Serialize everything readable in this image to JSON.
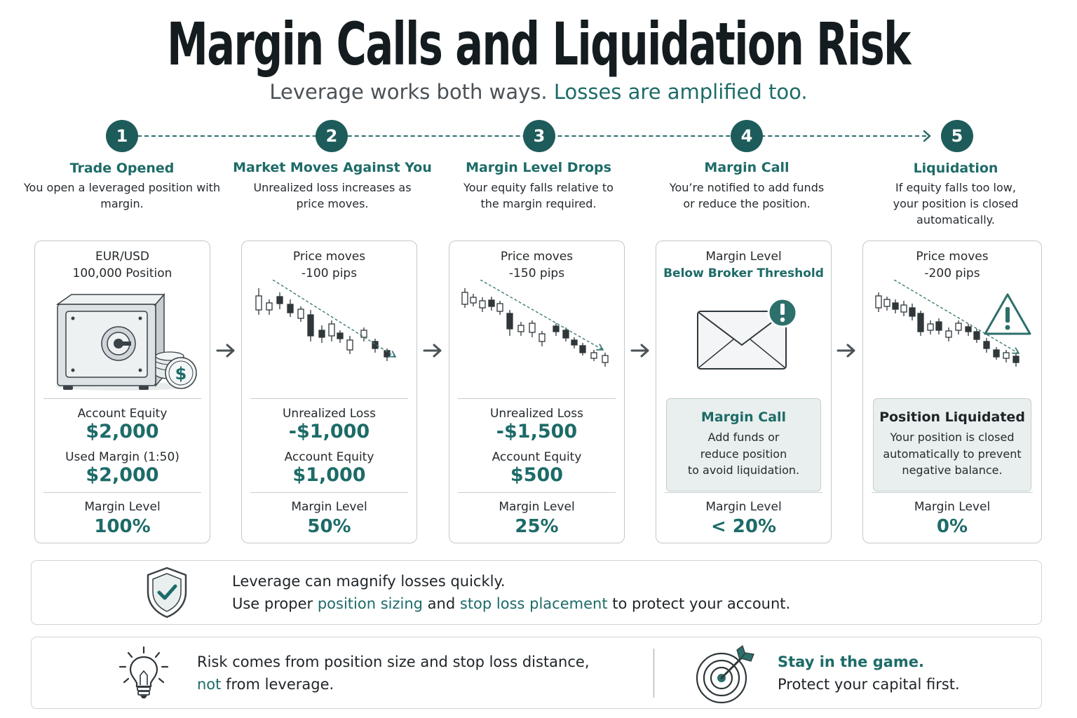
{
  "title": "Margin Calls and Liquidation Risk",
  "subtitle": {
    "part1": "Leverage works both ways.",
    "part2": "Losses are amplified too."
  },
  "colors": {
    "teal": "#1d6b68",
    "dark_teal": "#1d5c5a",
    "text": "#1a1f23",
    "border": "#c3c7ca"
  },
  "steps": [
    {
      "num": "1",
      "title": "Trade Opened",
      "desc": "You open a leveraged position with margin."
    },
    {
      "num": "2",
      "title": "Market Moves Against You",
      "desc": "Unrealized loss increases as price moves."
    },
    {
      "num": "3",
      "title": "Margin Level Drops",
      "desc": "Your equity falls relative to the margin required."
    },
    {
      "num": "4",
      "title": "Margin Call",
      "desc": "You’re notified to add funds or reduce the position."
    },
    {
      "num": "5",
      "title": "Liquidation",
      "desc": "If equity falls too low, your position is closed automatically."
    }
  ],
  "cards": [
    {
      "hdr1": "EUR/USD",
      "hdr2": "100,000 Position",
      "icon": "safe-icon",
      "lbl1": "Account Equity",
      "val1": "$2,000",
      "lbl2": "Used Margin (1:50)",
      "val2": "$2,000",
      "ml_label": "Margin Level",
      "ml_value": "100%"
    },
    {
      "hdr1": "Price moves",
      "hdr2": "-100 pips",
      "icon": "candlestick-chart-icon",
      "lbl1": "Unrealized Loss",
      "val1": "-$1,000",
      "lbl2": "Account Equity",
      "val2": "$1,000",
      "ml_label": "Margin Level",
      "ml_value": "50%"
    },
    {
      "hdr1": "Price moves",
      "hdr2": "-150 pips",
      "icon": "candlestick-chart-icon",
      "lbl1": "Unrealized Loss",
      "val1": "-$1,500",
      "lbl2": "Account Equity",
      "val2": "$500",
      "ml_label": "Margin Level",
      "ml_value": "25%"
    },
    {
      "hdr1": "Margin Level",
      "hdr2": "Below Broker Threshold",
      "icon": "envelope-alert-icon",
      "box_title": "Margin Call",
      "box_text1": "Add funds or",
      "box_text2": "reduce position",
      "box_text3": "to avoid liquidation.",
      "ml_label": "Margin Level",
      "ml_value": "< 20%"
    },
    {
      "hdr1": "Price moves",
      "hdr2": "-200 pips",
      "icon": "warning-triangle-icon",
      "box_title": "Position Liquidated",
      "box_text1": "Your position is closed",
      "box_text2": "automatically to prevent",
      "box_text3": "negative balance.",
      "ml_label": "Margin Level",
      "ml_value": "0%"
    }
  ],
  "panel1": {
    "icon": "shield-check-icon",
    "line1": "Leverage can magnify losses quickly.",
    "line2_a": "Use proper",
    "line2_b": "position sizing",
    "line2_c": "and",
    "line2_d": "stop loss placement",
    "line2_e": "to protect your account."
  },
  "panel2": {
    "left_icon": "lightbulb-icon",
    "left_line1": "Risk comes from position size and stop loss distance,",
    "left_line2_a": "not",
    "left_line2_b": "from leverage.",
    "right_icon": "target-arrow-icon",
    "right_line1": "Stay in the game.",
    "right_line2": "Protect your capital first."
  }
}
